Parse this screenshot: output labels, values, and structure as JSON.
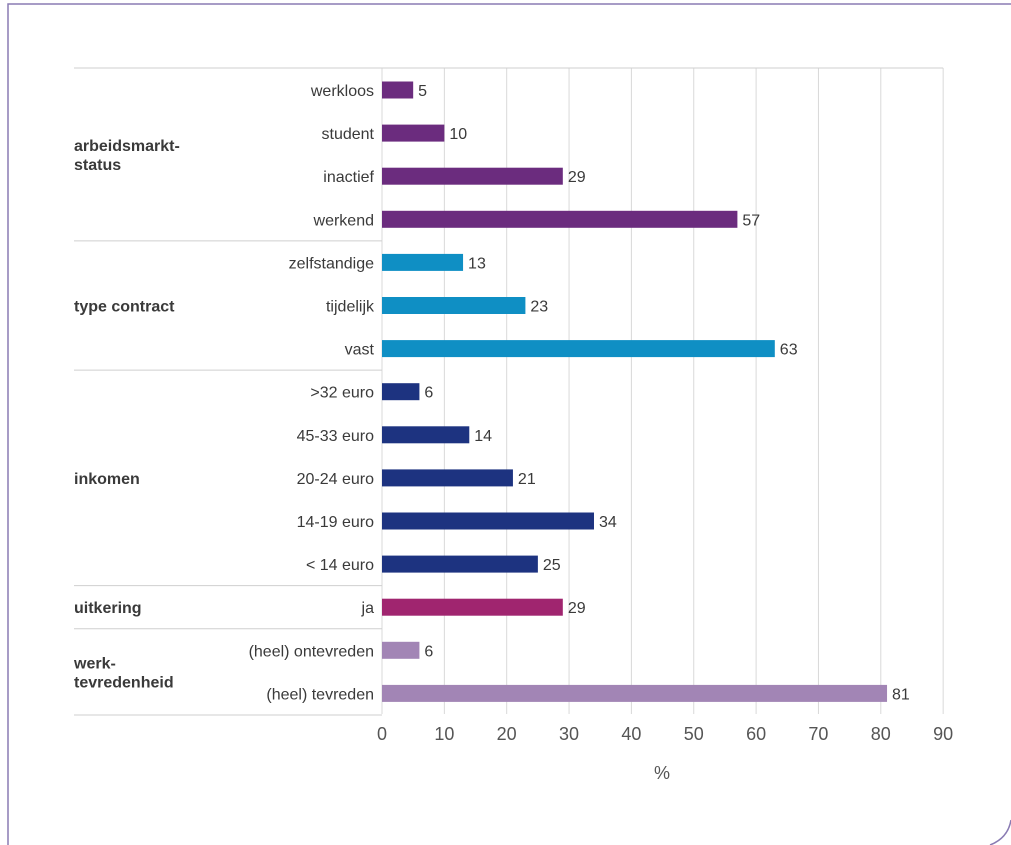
{
  "chart_data": {
    "type": "bar",
    "orientation": "horizontal",
    "xlabel": "%",
    "xlim": [
      0,
      90
    ],
    "xticks": [
      0,
      10,
      20,
      30,
      40,
      50,
      60,
      70,
      80,
      90
    ],
    "grid": true,
    "groups": [
      {
        "label": "arbeidsmarkt-\nstatus",
        "color": "#6b2c7e",
        "items": [
          {
            "label": "werkloos",
            "value": 5
          },
          {
            "label": "student",
            "value": 10
          },
          {
            "label": "inactief",
            "value": 29
          },
          {
            "label": "werkend",
            "value": 57
          }
        ]
      },
      {
        "label": "type contract",
        "color": "#0f8fc4",
        "items": [
          {
            "label": "zelfstandige",
            "value": 13
          },
          {
            "label": "tijdelijk",
            "value": 23
          },
          {
            "label": "vast",
            "value": 63
          }
        ]
      },
      {
        "label": "inkomen",
        "color": "#1d3380",
        "items": [
          {
            "label": ">32 euro",
            "value": 6
          },
          {
            "label": "45-33 euro",
            "value": 14
          },
          {
            "label": "20-24 euro",
            "value": 21
          },
          {
            "label": "14-19 euro",
            "value": 34
          },
          {
            "label": "< 14 euro",
            "value": 25
          }
        ]
      },
      {
        "label": "uitkering",
        "color": "#a0256f",
        "items": [
          {
            "label": "ja",
            "value": 29
          }
        ]
      },
      {
        "label": "werk-\ntevredenheid",
        "color": "#a285b5",
        "items": [
          {
            "label": "(heel) ontevreden",
            "value": 6
          },
          {
            "label": "(heel) tevreden",
            "value": 81
          }
        ]
      }
    ]
  },
  "colors": {
    "frame": "#8a7bb3",
    "grid": "#d9d9d9",
    "separator": "#cfcfcf",
    "text": "#3a3a3a",
    "axis_text": "#555555"
  }
}
